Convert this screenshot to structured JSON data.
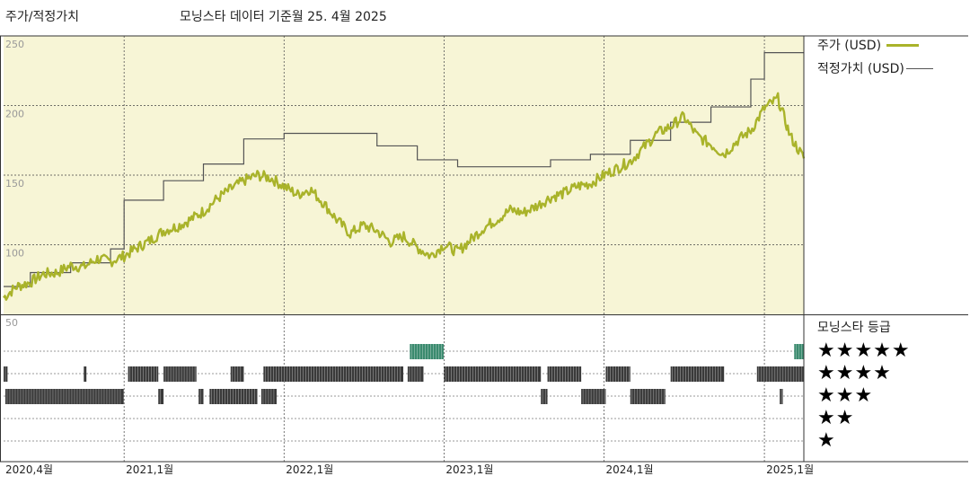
{
  "header": {
    "left_title": "주가/적정가치",
    "right_title": "모닝스타 데이터 기준월 25. 4월 2025"
  },
  "legend": [
    {
      "label": "주가 (USD)",
      "color": "#a9b32a"
    },
    {
      "label": "적정가치 (USD)",
      "color": "#555555"
    }
  ],
  "rating_panel": {
    "title": "모닝스타 등급",
    "rows": [
      "★★★★★",
      "★★★★",
      "★★★",
      "★★",
      "★"
    ],
    "bar_colors": {
      "5": "#3a8a6e",
      "4": "#3a3a3a",
      "3": "#3a3a3a"
    }
  },
  "chart_data": {
    "type": "line",
    "y_axis": {
      "range": [
        50,
        250
      ],
      "ticks": [
        250,
        200,
        150,
        100,
        50
      ]
    },
    "x_ticks": [
      "2020,4월",
      "2021,1월",
      "2022,1월",
      "2023,1월",
      "2024,1월",
      "2025,1월"
    ],
    "x_range": [
      "2020-04",
      "2025-04"
    ],
    "plot_background": "#f7f5d6",
    "series": [
      {
        "name": "주가 (USD)",
        "color": "#a9b32a",
        "points": [
          [
            "2020-04-01",
            62
          ],
          [
            "2020-05-01",
            70
          ],
          [
            "2020-06-01",
            73
          ],
          [
            "2020-07-01",
            79
          ],
          [
            "2020-08-01",
            80
          ],
          [
            "2020-09-01",
            85
          ],
          [
            "2020-10-01",
            84
          ],
          [
            "2020-11-01",
            90
          ],
          [
            "2020-12-01",
            88
          ],
          [
            "2021-01-01",
            92
          ],
          [
            "2021-02-01",
            98
          ],
          [
            "2021-03-01",
            103
          ],
          [
            "2021-04-01",
            110
          ],
          [
            "2021-05-01",
            113
          ],
          [
            "2021-06-01",
            118
          ],
          [
            "2021-07-01",
            124
          ],
          [
            "2021-08-01",
            133
          ],
          [
            "2021-09-01",
            140
          ],
          [
            "2021-10-01",
            146
          ],
          [
            "2021-11-01",
            150
          ],
          [
            "2021-12-01",
            148
          ],
          [
            "2022-01-01",
            142
          ],
          [
            "2022-02-01",
            136
          ],
          [
            "2022-03-01",
            140
          ],
          [
            "2022-04-01",
            130
          ],
          [
            "2022-05-01",
            118
          ],
          [
            "2022-06-01",
            108
          ],
          [
            "2022-07-01",
            114
          ],
          [
            "2022-08-01",
            110
          ],
          [
            "2022-09-01",
            102
          ],
          [
            "2022-10-01",
            106
          ],
          [
            "2022-11-01",
            98
          ],
          [
            "2022-12-01",
            92
          ],
          [
            "2023-01-01",
            100
          ],
          [
            "2023-02-01",
            95
          ],
          [
            "2023-03-01",
            103
          ],
          [
            "2023-04-01",
            112
          ],
          [
            "2023-05-01",
            118
          ],
          [
            "2023-06-01",
            125
          ],
          [
            "2023-07-01",
            123
          ],
          [
            "2023-08-01",
            128
          ],
          [
            "2023-09-01",
            134
          ],
          [
            "2023-10-01",
            137
          ],
          [
            "2023-11-01",
            142
          ],
          [
            "2023-12-01",
            144
          ],
          [
            "2024-01-01",
            150
          ],
          [
            "2024-02-01",
            155
          ],
          [
            "2024-03-01",
            160
          ],
          [
            "2024-04-01",
            170
          ],
          [
            "2024-05-01",
            180
          ],
          [
            "2024-06-01",
            185
          ],
          [
            "2024-07-01",
            192
          ],
          [
            "2024-08-01",
            178
          ],
          [
            "2024-09-01",
            172
          ],
          [
            "2024-10-01",
            165
          ],
          [
            "2024-11-01",
            175
          ],
          [
            "2024-12-01",
            182
          ],
          [
            "2025-01-01",
            198
          ],
          [
            "2025-02-01",
            205
          ],
          [
            "2025-03-01",
            178
          ],
          [
            "2025-04-01",
            162
          ]
        ]
      },
      {
        "name": "적정가치 (USD)",
        "color": "#555555",
        "steps": [
          [
            "2020-04-01",
            70
          ],
          [
            "2020-06-01",
            80
          ],
          [
            "2020-09-01",
            87
          ],
          [
            "2020-12-01",
            97
          ],
          [
            "2021-01-01",
            132
          ],
          [
            "2021-04-01",
            146
          ],
          [
            "2021-07-01",
            158
          ],
          [
            "2021-10-01",
            176
          ],
          [
            "2022-01-01",
            180
          ],
          [
            "2022-08-01",
            171
          ],
          [
            "2022-11-01",
            161
          ],
          [
            "2023-02-01",
            156
          ],
          [
            "2023-09-01",
            161
          ],
          [
            "2023-12-01",
            165
          ],
          [
            "2024-03-01",
            175
          ],
          [
            "2024-06-01",
            188
          ],
          [
            "2024-09-01",
            199
          ],
          [
            "2024-12-01",
            219
          ],
          [
            "2025-01-01",
            238
          ],
          [
            "2025-04-01",
            238
          ]
        ]
      }
    ],
    "ratings": [
      {
        "stars": 5,
        "segments": [
          [
            "2022-10-15",
            "2022-12-31"
          ],
          [
            "2025-03-10",
            "2025-04-01"
          ]
        ]
      },
      {
        "stars": 4,
        "segments": [
          [
            "2020-04-01",
            "2020-04-10"
          ],
          [
            "2020-10-01",
            "2020-10-07"
          ],
          [
            "2021-01-10",
            "2021-03-20"
          ],
          [
            "2021-04-01",
            "2021-06-15"
          ],
          [
            "2021-09-01",
            "2021-10-01"
          ],
          [
            "2021-11-15",
            "2022-09-30"
          ],
          [
            "2022-10-10",
            "2022-11-15"
          ],
          [
            "2023-01-01",
            "2023-08-10"
          ],
          [
            "2023-08-25",
            "2023-11-10"
          ],
          [
            "2024-01-05",
            "2024-03-01"
          ],
          [
            "2024-06-01",
            "2024-10-01"
          ],
          [
            "2024-12-15",
            "2025-04-01"
          ]
        ]
      },
      {
        "stars": 3,
        "segments": [
          [
            "2020-04-05",
            "2020-12-31"
          ],
          [
            "2021-03-20",
            "2021-04-01"
          ],
          [
            "2021-06-20",
            "2021-07-01"
          ],
          [
            "2021-07-15",
            "2021-11-01"
          ],
          [
            "2021-11-10",
            "2021-12-15"
          ],
          [
            "2023-08-10",
            "2023-08-25"
          ],
          [
            "2023-11-10",
            "2024-01-05"
          ],
          [
            "2024-03-01",
            "2024-05-20"
          ],
          [
            "2025-02-05",
            "2025-02-12"
          ]
        ]
      }
    ]
  }
}
